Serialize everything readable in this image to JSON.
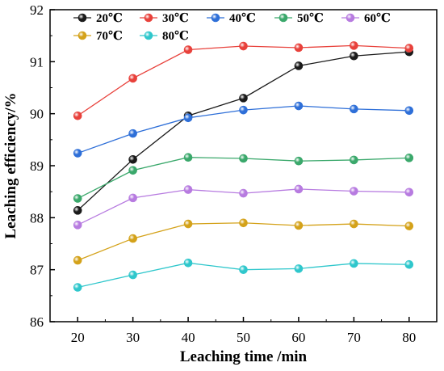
{
  "chart_data": {
    "type": "line",
    "xlabel": "Leaching time /min",
    "ylabel": "Leaching efficiency/%",
    "x": [
      20,
      30,
      40,
      50,
      60,
      70,
      80
    ],
    "xlim": [
      15,
      85
    ],
    "ylim": [
      86,
      92
    ],
    "xticks": [
      20,
      30,
      40,
      50,
      60,
      70,
      80
    ],
    "yticks": [
      86,
      87,
      88,
      89,
      90,
      91,
      92
    ],
    "grid": false,
    "legend_position": "top",
    "series": [
      {
        "name": "20℃",
        "color": "#1a1a1a",
        "values": [
          88.14,
          89.12,
          89.96,
          90.3,
          90.92,
          91.11,
          91.19
        ]
      },
      {
        "name": "30℃",
        "color": "#e8413b",
        "values": [
          89.96,
          90.68,
          91.23,
          91.3,
          91.27,
          91.31,
          91.26
        ]
      },
      {
        "name": "40℃",
        "color": "#2e6fd8",
        "values": [
          89.24,
          89.62,
          89.92,
          90.07,
          90.15,
          90.09,
          90.06
        ]
      },
      {
        "name": "50℃",
        "color": "#3aa86b",
        "values": [
          88.37,
          88.91,
          89.16,
          89.14,
          89.09,
          89.11,
          89.15
        ]
      },
      {
        "name": "60℃",
        "color": "#b77be0",
        "values": [
          87.86,
          88.38,
          88.54,
          88.47,
          88.55,
          88.51,
          88.49
        ]
      },
      {
        "name": "70℃",
        "color": "#d4a21a",
        "values": [
          87.18,
          87.6,
          87.88,
          87.9,
          87.85,
          87.88,
          87.84
        ]
      },
      {
        "name": "80℃",
        "color": "#2fc7cc",
        "values": [
          86.66,
          86.9,
          87.13,
          87.0,
          87.02,
          87.12,
          87.1
        ]
      }
    ]
  }
}
